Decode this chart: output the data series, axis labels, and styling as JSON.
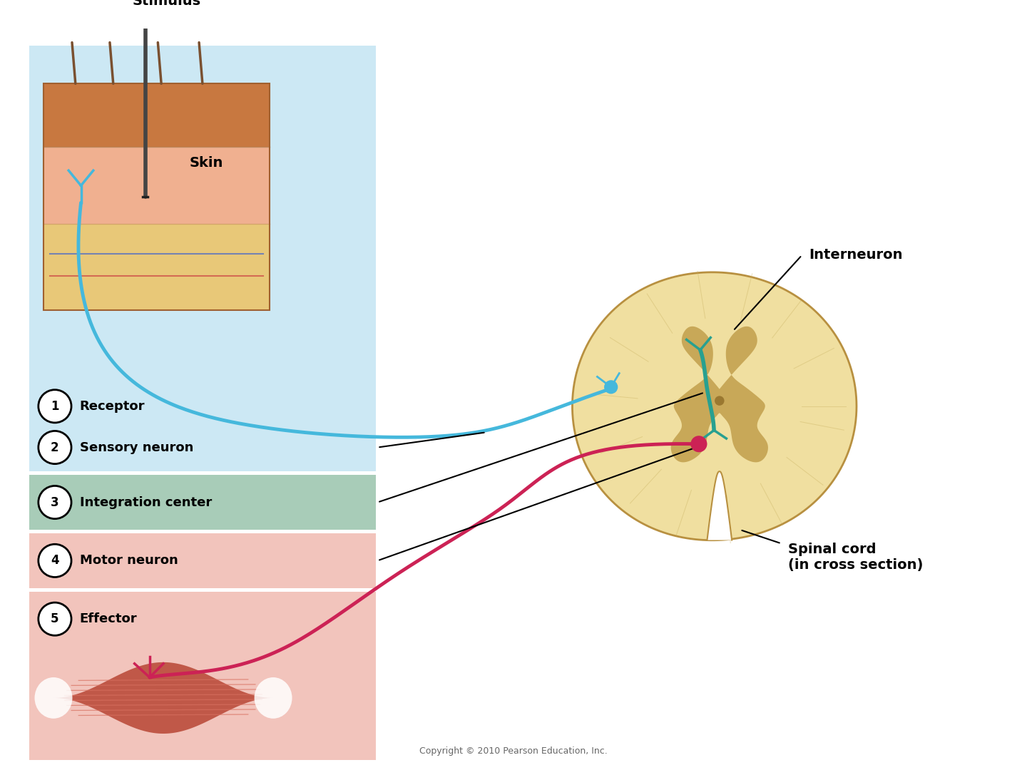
{
  "bg_color": "#ffffff",
  "panel_blue": "#cce8f4",
  "panel_green": "#a8ccb8",
  "panel_pink": "#f2c4bc",
  "labels": [
    {
      "num": "1",
      "text": "Receptor"
    },
    {
      "num": "2",
      "text": "Sensory neuron"
    },
    {
      "num": "3",
      "text": "Integration center"
    },
    {
      "num": "4",
      "text": "Motor neuron"
    },
    {
      "num": "5",
      "text": "Effector"
    }
  ],
  "stimulus_label": "Stimulus",
  "skin_label": "Skin",
  "interneuron_label": "Interneuron",
  "spinal_cord_label": "Spinal cord\n(in cross section)",
  "copyright": "Copyright © 2010 Pearson Education, Inc.",
  "sensory_color": "#45b8dc",
  "interneuron_color": "#28a090",
  "motor_color": "#cc2255",
  "sc_outer_color": "#e8d090",
  "sc_white_color": "#f0dfa0",
  "sc_gray_color": "#c8a858",
  "sc_border_color": "#b89040",
  "skin_top_color": "#d4956a",
  "skin_mid_color": "#e8b87a",
  "skin_deep_color": "#f5cca0",
  "muscle_color": "#c05848",
  "muscle_stripe": "#d87060",
  "muscle_tendon": "#f0e8e0"
}
